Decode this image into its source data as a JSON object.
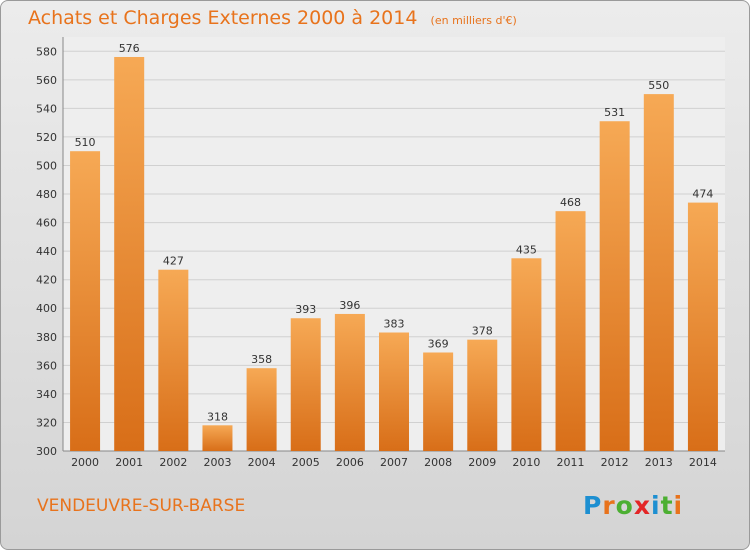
{
  "title": "Achats et Charges Externes 2000 à 2014",
  "unit_note": "(en milliers d'€)",
  "town": "VENDEUVRE-SUR-BARSE",
  "brand": {
    "text": "Proxiti",
    "letters": [
      "P",
      "r",
      "o",
      "x",
      "i",
      "t",
      "i"
    ],
    "letter_colors": [
      "#1d8fd1",
      "#e8731c",
      "#4caf32",
      "#e32526",
      "#1d8fd1",
      "#4caf32",
      "#e8731c"
    ]
  },
  "colors": {
    "accent": "#e8731c",
    "bar_light": "#f6a955",
    "bar_dark": "#d86e18",
    "plot_bg": "#eeeeee"
  },
  "chart_data": {
    "type": "bar",
    "categories": [
      "2000",
      "2001",
      "2002",
      "2003",
      "2004",
      "2005",
      "2006",
      "2007",
      "2008",
      "2009",
      "2010",
      "2011",
      "2012",
      "2013",
      "2014"
    ],
    "values": [
      510,
      576,
      427,
      318,
      358,
      393,
      396,
      383,
      369,
      378,
      435,
      468,
      531,
      550,
      474
    ],
    "ylim": [
      300,
      580
    ],
    "yticks": [
      300,
      320,
      340,
      360,
      380,
      400,
      420,
      440,
      460,
      480,
      500,
      520,
      540,
      560,
      580
    ],
    "grid": true,
    "xlabel": "",
    "ylabel": ""
  }
}
